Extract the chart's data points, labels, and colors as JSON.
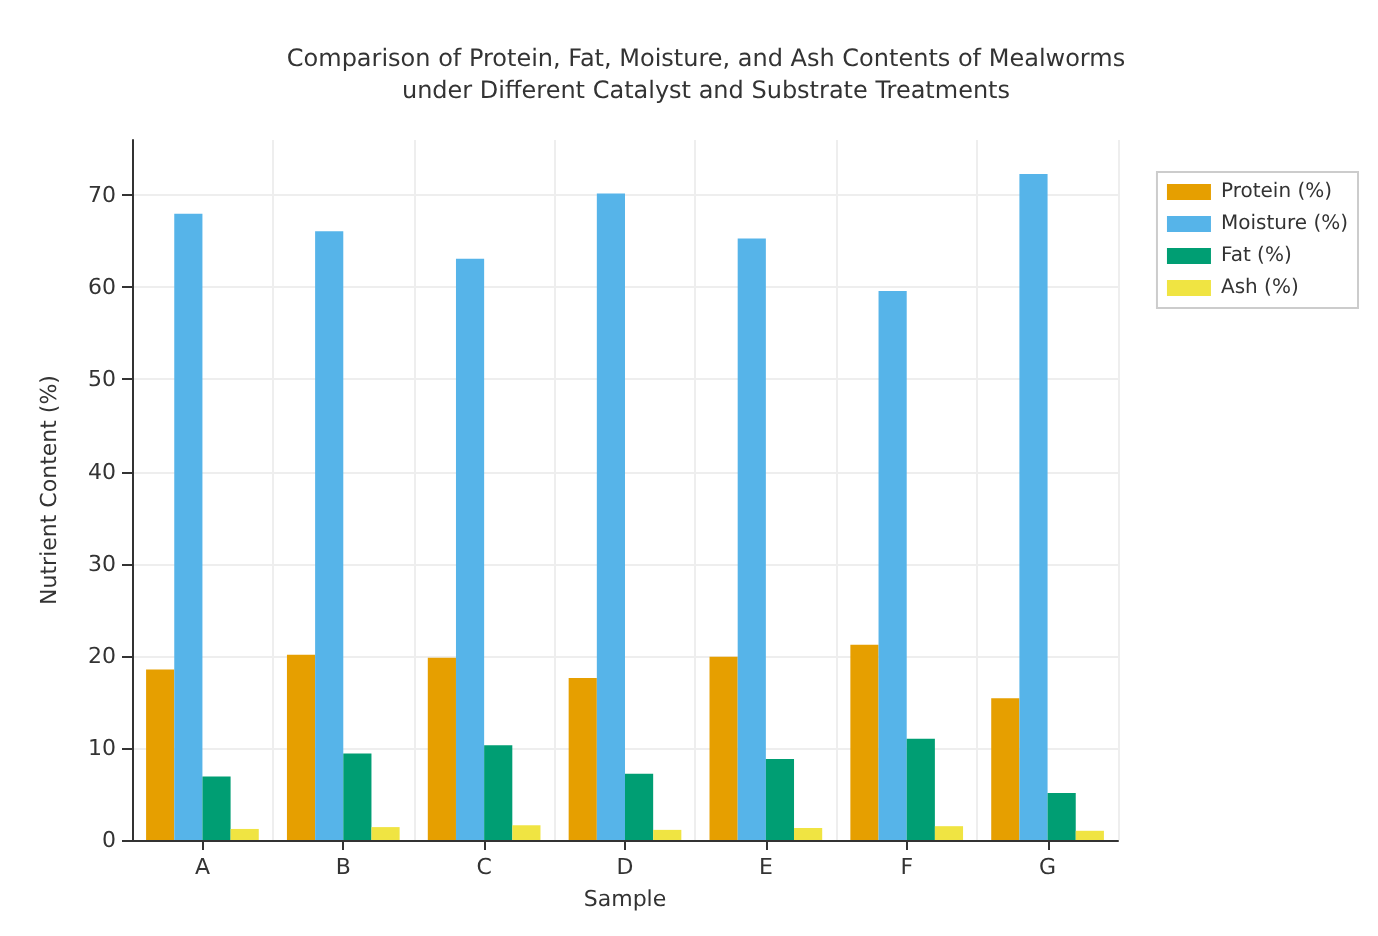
{
  "chart_data": {
    "type": "bar",
    "title": "Comparison of Protein, Fat, Moisture, and Ash Contents of Mealworms\nunder Different Catalyst and Substrate Treatments",
    "xlabel": "Sample",
    "ylabel": "Nutrient Content (%)",
    "categories": [
      "A",
      "B",
      "C",
      "D",
      "E",
      "F",
      "G"
    ],
    "series": [
      {
        "name": "Protein (%)",
        "color": "#e69f00",
        "values": [
          18.5,
          20.1,
          19.8,
          17.6,
          19.9,
          21.2,
          15.4
        ]
      },
      {
        "name": "Moisture (%)",
        "color": "#56b4e9",
        "values": [
          68.0,
          66.1,
          63.1,
          70.2,
          65.3,
          59.6,
          72.3
        ]
      },
      {
        "name": "Fat (%)",
        "color": "#009e73",
        "values": [
          6.9,
          9.4,
          10.3,
          7.2,
          8.8,
          11.0,
          5.1
        ]
      },
      {
        "name": "Ash (%)",
        "color": "#f0e442",
        "values": [
          1.2,
          1.4,
          1.6,
          1.1,
          1.3,
          1.5,
          1.0
        ]
      }
    ],
    "ylim": [
      0,
      76
    ],
    "yticks": [
      0,
      10,
      20,
      30,
      40,
      50,
      60,
      70
    ],
    "grid": true,
    "legend": "top right"
  }
}
